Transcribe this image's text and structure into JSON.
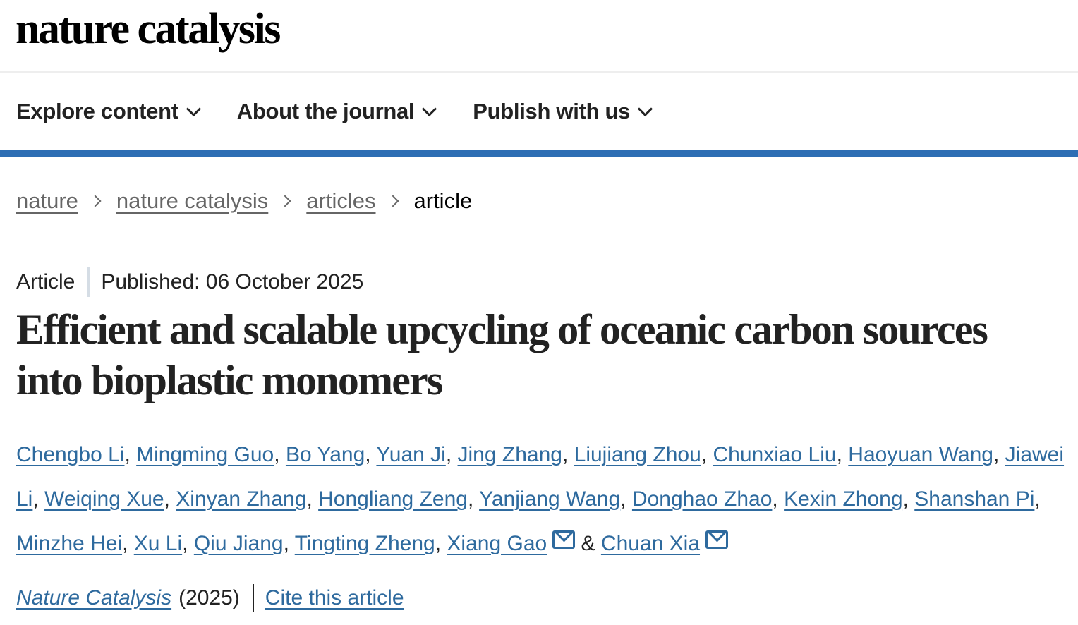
{
  "logo": "nature catalysis",
  "nav": {
    "items": [
      {
        "label": "Explore content"
      },
      {
        "label": "About the journal"
      },
      {
        "label": "Publish with us"
      }
    ]
  },
  "breadcrumb": [
    {
      "label": "nature"
    },
    {
      "label": "nature catalysis"
    },
    {
      "label": "articles"
    },
    {
      "label": "article"
    }
  ],
  "article": {
    "type": "Article",
    "published": "Published: 06 October 2025",
    "title": "Efficient and scalable upcycling of oceanic carbon sources into bioplastic monomers",
    "authors": [
      {
        "name": "Chengbo Li"
      },
      {
        "name": "Mingming Guo"
      },
      {
        "name": "Bo Yang"
      },
      {
        "name": "Yuan Ji"
      },
      {
        "name": "Jing Zhang"
      },
      {
        "name": "Liujiang Zhou"
      },
      {
        "name": "Chunxiao Liu"
      },
      {
        "name": "Haoyuan Wang"
      },
      {
        "name": "Jiawei Li"
      },
      {
        "name": "Weiqing Xue"
      },
      {
        "name": "Xinyan Zhang"
      },
      {
        "name": "Hongliang Zeng"
      },
      {
        "name": "Yanjiang Wang"
      },
      {
        "name": "Donghao Zhao"
      },
      {
        "name": "Kexin Zhong"
      },
      {
        "name": "Shanshan Pi"
      },
      {
        "name": "Minzhe Hei"
      },
      {
        "name": "Xu Li"
      },
      {
        "name": "Qiu Jiang"
      },
      {
        "name": "Tingting Zheng"
      },
      {
        "name": "Xiang Gao",
        "corresponding": true
      },
      {
        "name": "Chuan Xia",
        "corresponding": true
      }
    ],
    "ampersand": "&",
    "comma": ",",
    "journal": "Nature Catalysis",
    "year": "(2025)",
    "cite_label": "Cite this article"
  },
  "colors": {
    "accent": "#2e6eb4",
    "link": "#2e6a9e"
  }
}
